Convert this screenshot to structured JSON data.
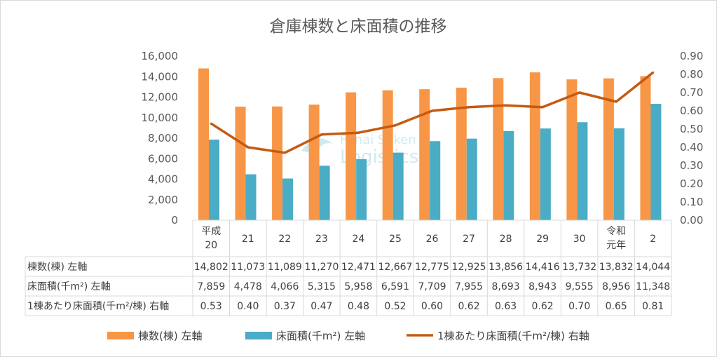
{
  "chart_data": {
    "type": "bar+line",
    "title": "倉庫棟数と床面積の推移",
    "categories": [
      [
        "平成",
        "20"
      ],
      [
        "21"
      ],
      [
        "22"
      ],
      [
        "23"
      ],
      [
        "24"
      ],
      [
        "25"
      ],
      [
        "26"
      ],
      [
        "27"
      ],
      [
        "28"
      ],
      [
        "29"
      ],
      [
        "30"
      ],
      [
        "令和",
        "元年"
      ],
      [
        "2"
      ]
    ],
    "series": [
      {
        "name": "棟数(棟) 左軸",
        "type": "bar",
        "axis": "left",
        "color": "#F79646",
        "values": [
          14802,
          11073,
          11089,
          11270,
          12471,
          12667,
          12775,
          12925,
          13856,
          14416,
          13732,
          13832,
          14044
        ],
        "labels": [
          "14,802",
          "11,073",
          "11,089",
          "11,270",
          "12,471",
          "12,667",
          "12,775",
          "12,925",
          "13,856",
          "14,416",
          "13,732",
          "13,832",
          "14,044"
        ]
      },
      {
        "name": "床面積(千m²) 左軸",
        "type": "bar",
        "axis": "left",
        "color": "#4BACC6",
        "values": [
          7859,
          4478,
          4066,
          5315,
          5958,
          6591,
          7709,
          7955,
          8693,
          8943,
          9555,
          8956,
          11348
        ],
        "labels": [
          "7,859",
          "4,478",
          "4,066",
          "5,315",
          "5,958",
          "6,591",
          "7,709",
          "7,955",
          "8,693",
          "8,943",
          "9,555",
          "8,956",
          "11,348"
        ]
      },
      {
        "name": "1棟あたり床面積(千m²/棟) 右軸",
        "type": "line",
        "axis": "right",
        "color": "#C55A11",
        "values": [
          0.53,
          0.4,
          0.37,
          0.47,
          0.48,
          0.52,
          0.6,
          0.62,
          0.63,
          0.62,
          0.7,
          0.65,
          0.81
        ],
        "labels": [
          "0.53",
          "0.40",
          "0.37",
          "0.47",
          "0.48",
          "0.52",
          "0.60",
          "0.62",
          "0.63",
          "0.62",
          "0.70",
          "0.65",
          "0.81"
        ]
      }
    ],
    "left_axis": {
      "range": [
        0,
        16000
      ],
      "ticks": [
        "0",
        "2,000",
        "4,000",
        "6,000",
        "8,000",
        "10,000",
        "12,000",
        "14,000",
        "16,000"
      ]
    },
    "right_axis": {
      "range": [
        0,
        0.9
      ],
      "ticks": [
        "0.00",
        "0.10",
        "0.20",
        "0.30",
        "0.40",
        "0.50",
        "0.60",
        "0.70",
        "0.80",
        "0.90"
      ]
    },
    "legend": "bottom",
    "grid": false,
    "watermark": [
      "Funai Soken",
      "Logistics"
    ]
  }
}
